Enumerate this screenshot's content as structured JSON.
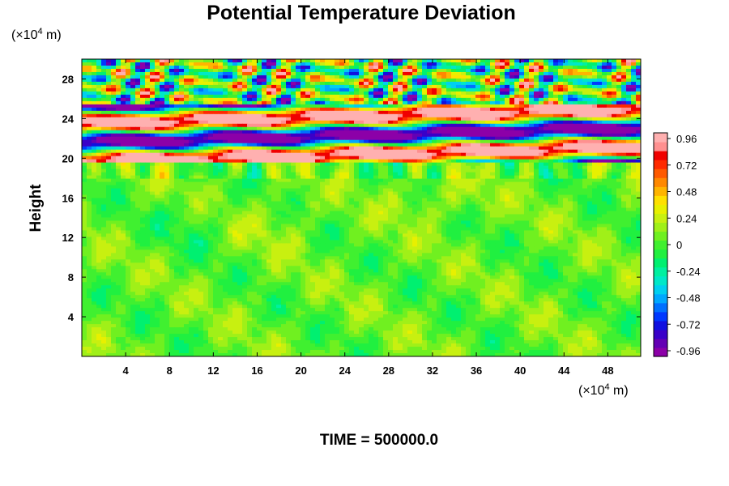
{
  "chart_data": {
    "type": "heatmap",
    "title": "Potential Temperature Deviation",
    "ylabel": "Height",
    "y_unit_prefix": "(×10",
    "y_unit_exp": "4",
    "y_unit_suffix": " m)",
    "x_unit_prefix": "(×10",
    "x_unit_exp": "4",
    "x_unit_suffix": " m)",
    "xlim": [
      0,
      51
    ],
    "ylim": [
      0,
      30
    ],
    "x_ticks": [
      4,
      8,
      12,
      16,
      20,
      24,
      28,
      32,
      36,
      40,
      44,
      48
    ],
    "y_ticks": [
      4,
      8,
      12,
      16,
      20,
      24,
      28
    ],
    "colorbar": {
      "ticks": [
        "0.96",
        "0.72",
        "0.48",
        "0.24",
        "0",
        "-0.24",
        "-0.48",
        "-0.72",
        "-0.96"
      ],
      "range": [
        -0.96,
        0.96
      ],
      "levels": [
        "#8c00a8",
        "#6400b4",
        "#3a00c8",
        "#1010e0",
        "#0038ff",
        "#0070ff",
        "#00a8ff",
        "#00d0f0",
        "#00e8c8",
        "#00f0a0",
        "#00f070",
        "#20f040",
        "#40f030",
        "#70f020",
        "#a0f018",
        "#c8f010",
        "#e8f000",
        "#ffe000",
        "#ffb400",
        "#ff8800",
        "#ff5a00",
        "#ff2a00",
        "#f00000",
        "#ff9090",
        "#ffb0b0"
      ]
    },
    "annotation": "TIME = 500000.0",
    "grid": false
  }
}
